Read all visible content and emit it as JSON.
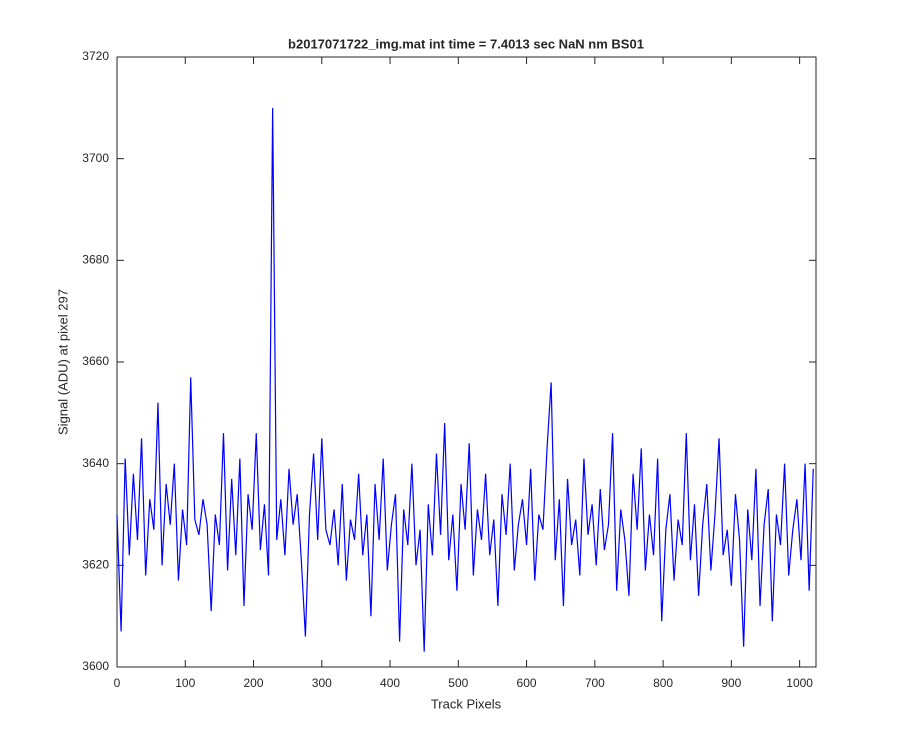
{
  "chart_data": {
    "type": "line",
    "title": "b2017071722_img.mat int time = 7.4013 sec  NaN nm BS01",
    "x_label": "Track Pixels",
    "y_label": "Signal (ADU) at pixel 297",
    "color": "#0000ff",
    "xlim": [
      0,
      1024
    ],
    "ylim": [
      3600,
      3720
    ],
    "xticks": [
      0,
      100,
      200,
      300,
      400,
      500,
      600,
      700,
      800,
      900,
      1000
    ],
    "yticks": [
      3600,
      3620,
      3640,
      3660,
      3680,
      3700,
      3720
    ],
    "x": [
      0,
      6,
      12,
      18,
      24,
      30,
      36,
      42,
      48,
      54,
      60,
      66,
      72,
      78,
      84,
      90,
      96,
      102,
      108,
      114,
      120,
      126,
      132,
      138,
      144,
      150,
      156,
      162,
      168,
      174,
      180,
      186,
      192,
      198,
      204,
      210,
      216,
      222,
      228,
      234,
      240,
      246,
      252,
      258,
      264,
      270,
      276,
      282,
      288,
      294,
      300,
      306,
      312,
      318,
      324,
      330,
      336,
      342,
      348,
      354,
      360,
      366,
      372,
      378,
      384,
      390,
      396,
      402,
      408,
      414,
      420,
      426,
      432,
      438,
      444,
      450,
      456,
      462,
      468,
      474,
      480,
      486,
      492,
      498,
      504,
      510,
      516,
      522,
      528,
      534,
      540,
      546,
      552,
      558,
      564,
      570,
      576,
      582,
      588,
      594,
      600,
      606,
      612,
      618,
      624,
      630,
      636,
      642,
      648,
      654,
      660,
      666,
      672,
      678,
      684,
      690,
      696,
      702,
      708,
      714,
      720,
      726,
      732,
      738,
      744,
      750,
      756,
      762,
      768,
      774,
      780,
      786,
      792,
      798,
      804,
      810,
      816,
      822,
      828,
      834,
      840,
      846,
      852,
      858,
      864,
      870,
      876,
      882,
      888,
      894,
      900,
      906,
      912,
      918,
      924,
      930,
      936,
      942,
      948,
      954,
      960,
      966,
      972,
      978,
      984,
      990,
      996,
      1002,
      1008,
      1014,
      1020
    ],
    "values": [
      3630,
      3607,
      3641,
      3622,
      3638,
      3625,
      3645,
      3618,
      3633,
      3627,
      3652,
      3620,
      3636,
      3628,
      3640,
      3617,
      3631,
      3624,
      3657,
      3629,
      3626,
      3633,
      3628,
      3611,
      3630,
      3624,
      3646,
      3619,
      3637,
      3622,
      3641,
      3612,
      3634,
      3627,
      3646,
      3623,
      3632,
      3618,
      3710,
      3625,
      3633,
      3622,
      3639,
      3628,
      3634,
      3621,
      3606,
      3630,
      3642,
      3625,
      3645,
      3627,
      3624,
      3631,
      3620,
      3636,
      3617,
      3629,
      3625,
      3638,
      3622,
      3630,
      3610,
      3636,
      3625,
      3641,
      3619,
      3628,
      3634,
      3605,
      3631,
      3624,
      3640,
      3620,
      3627,
      3603,
      3632,
      3622,
      3642,
      3626,
      3648,
      3621,
      3630,
      3615,
      3636,
      3627,
      3644,
      3618,
      3631,
      3625,
      3638,
      3622,
      3629,
      3612,
      3634,
      3626,
      3640,
      3619,
      3628,
      3633,
      3624,
      3639,
      3617,
      3630,
      3627,
      3643,
      3656,
      3621,
      3633,
      3612,
      3637,
      3624,
      3629,
      3618,
      3641,
      3626,
      3632,
      3620,
      3635,
      3623,
      3628,
      3646,
      3615,
      3631,
      3625,
      3614,
      3638,
      3627,
      3643,
      3619,
      3630,
      3622,
      3641,
      3609,
      3627,
      3634,
      3617,
      3629,
      3624,
      3646,
      3621,
      3632,
      3614,
      3628,
      3636,
      3619,
      3630,
      3645,
      3622,
      3627,
      3616,
      3634,
      3625,
      3604,
      3631,
      3621,
      3639,
      3612,
      3628,
      3635,
      3609,
      3630,
      3624,
      3640,
      3618,
      3627,
      3633,
      3621,
      3640,
      3615,
      3639
    ]
  }
}
